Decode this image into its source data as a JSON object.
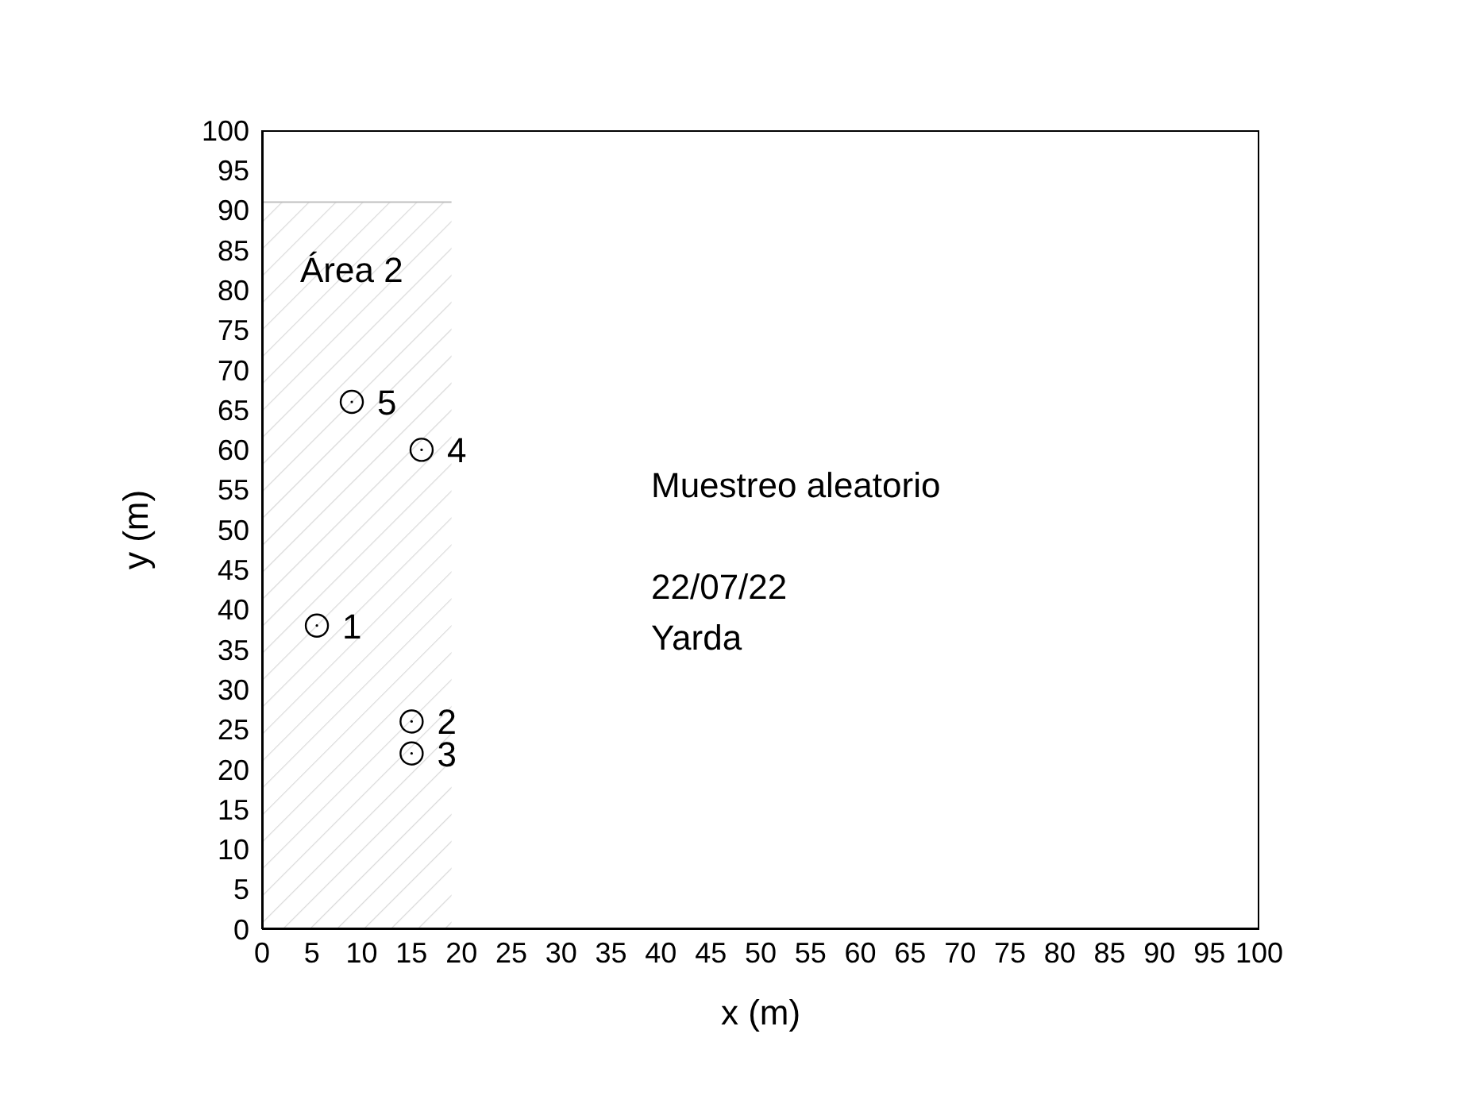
{
  "chart_data": {
    "type": "scatter",
    "xlabel": "x (m)",
    "ylabel": "y (m)",
    "xlim": [
      0,
      100
    ],
    "xticks": [
      0,
      5,
      10,
      15,
      20,
      25,
      30,
      35,
      40,
      45,
      50,
      55,
      60,
      65,
      70,
      75,
      80,
      85,
      90,
      95,
      100
    ],
    "ylim": [
      0,
      100
    ],
    "yticks": [
      0,
      5,
      10,
      15,
      20,
      25,
      30,
      35,
      40,
      45,
      50,
      55,
      60,
      65,
      70,
      75,
      80,
      85,
      90,
      95,
      100
    ],
    "series": [
      {
        "type": "area",
        "name": "Área 2",
        "color": "#bfbfbf",
        "x": [
          0,
          19
        ],
        "values": [
          91,
          91
        ]
      },
      {
        "color": "#000000",
        "marker": "circle",
        "x": [
          5.5,
          15,
          15,
          16,
          9
        ],
        "values": [
          38,
          26,
          22,
          60,
          66
        ]
      }
    ],
    "annotations": [
      "Muestreo aleatorio",
      "22/07/22",
      "Yarda",
      {
        "text": "1",
        "x": 5.5,
        "y": 38
      },
      {
        "text": "2",
        "x": 15,
        "y": 26
      },
      {
        "text": "3",
        "x": 15,
        "y": 22
      },
      {
        "text": "4",
        "x": 16,
        "y": 60
      },
      {
        "text": "5",
        "x": 9,
        "y": 66
      }
    ]
  }
}
